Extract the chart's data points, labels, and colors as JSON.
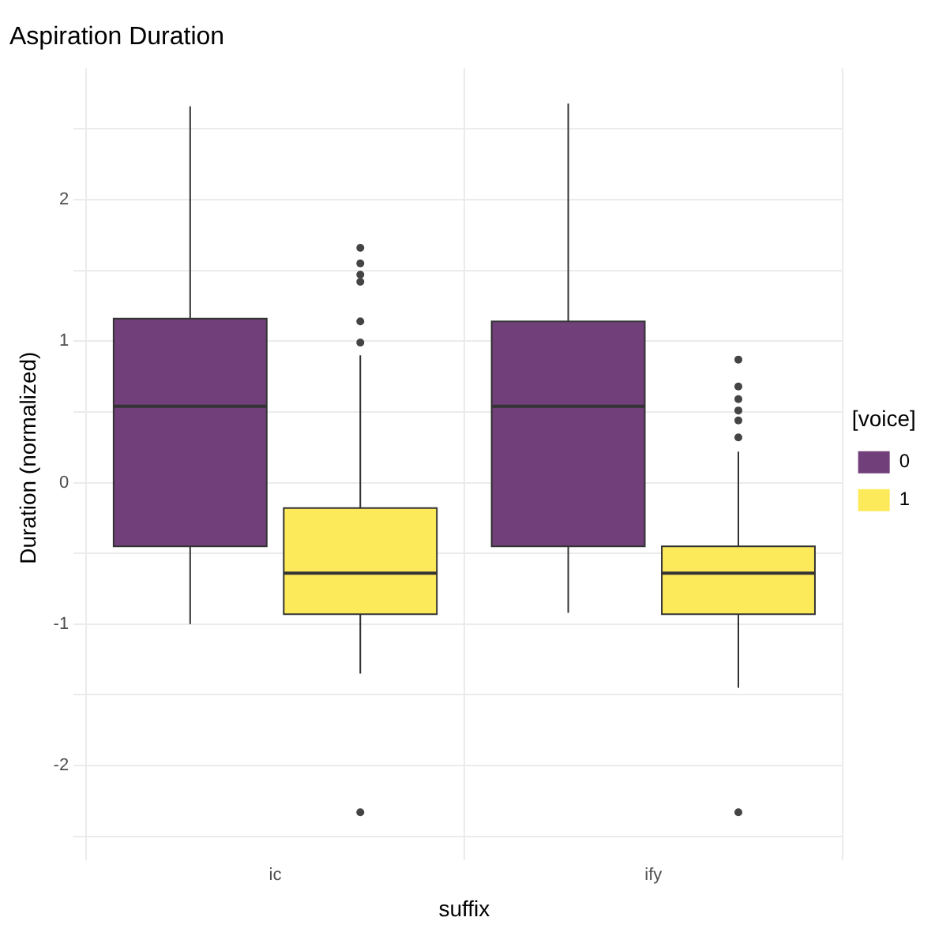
{
  "chart_data": {
    "type": "box",
    "title": "Aspiration Duration",
    "xlabel": "suffix",
    "ylabel": "Duration (normalized)",
    "legend_title": "[voice]",
    "categories": [
      "ic",
      "ify"
    ],
    "series": [
      {
        "name": "0",
        "color": "#71407a",
        "boxes": [
          {
            "low": -1.0,
            "q1": -0.45,
            "median": 0.54,
            "q3": 1.16,
            "high": 2.66
          },
          {
            "low": -0.92,
            "q1": -0.45,
            "median": 0.54,
            "q3": 1.14,
            "high": 2.68
          }
        ]
      },
      {
        "name": "1",
        "color": "#fdea5b",
        "boxes": [
          {
            "low": -1.35,
            "q1": -0.93,
            "median": -0.64,
            "q3": -0.18,
            "high": 0.9,
            "outliers": [
              1.66,
              1.55,
              1.47,
              1.42,
              1.14,
              0.99,
              -2.33
            ]
          },
          {
            "low": -1.45,
            "q1": -0.93,
            "median": -0.64,
            "q3": -0.45,
            "high": 0.22,
            "outliers": [
              0.87,
              0.68,
              0.59,
              0.51,
              0.44,
              0.32,
              -2.33
            ]
          }
        ]
      }
    ],
    "ylim": [
      -2.58,
      2.93
    ],
    "yticks": [
      {
        "value": -2.5,
        "label": null
      },
      -2,
      {
        "value": -1.5,
        "label": null
      },
      -1,
      {
        "value": -0.5,
        "label": null
      },
      0,
      {
        "value": 0.5,
        "label": null
      },
      1,
      {
        "value": 1.5,
        "label": null
      },
      2,
      {
        "value": 2.5,
        "label": null
      }
    ],
    "grid": true,
    "legend": "right"
  }
}
